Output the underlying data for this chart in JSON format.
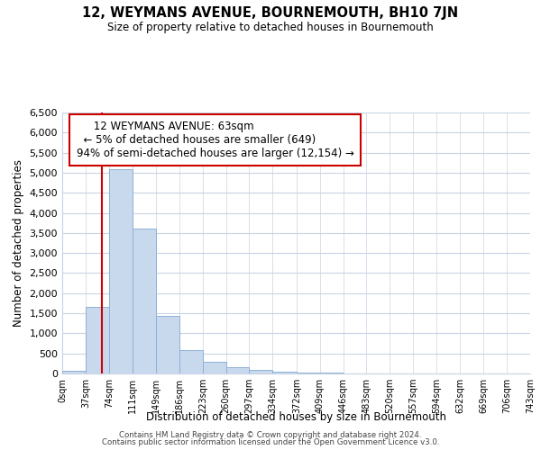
{
  "title": "12, WEYMANS AVENUE, BOURNEMOUTH, BH10 7JN",
  "subtitle": "Size of property relative to detached houses in Bournemouth",
  "xlabel": "Distribution of detached houses by size in Bournemouth",
  "ylabel": "Number of detached properties",
  "bar_edges": [
    0,
    37,
    74,
    111,
    149,
    186,
    223,
    260,
    297,
    334,
    372,
    409,
    446,
    483,
    520,
    557,
    594,
    632,
    669,
    706,
    743
  ],
  "bar_heights": [
    60,
    1650,
    5080,
    3600,
    1430,
    580,
    300,
    155,
    95,
    55,
    20,
    30,
    0,
    0,
    0,
    0,
    0,
    0,
    0,
    0
  ],
  "bar_color": "#c8d9ee",
  "bar_edge_color": "#8fb0d4",
  "marker_x": 63,
  "marker_color": "#cc0000",
  "ylim": [
    0,
    6500
  ],
  "yticks": [
    0,
    500,
    1000,
    1500,
    2000,
    2500,
    3000,
    3500,
    4000,
    4500,
    5000,
    5500,
    6000,
    6500
  ],
  "xlim": [
    0,
    743
  ],
  "tick_labels": [
    "0sqm",
    "37sqm",
    "74sqm",
    "111sqm",
    "149sqm",
    "186sqm",
    "223sqm",
    "260sqm",
    "297sqm",
    "334sqm",
    "372sqm",
    "409sqm",
    "446sqm",
    "483sqm",
    "520sqm",
    "557sqm",
    "594sqm",
    "632sqm",
    "669sqm",
    "706sqm",
    "743sqm"
  ],
  "annotation_title": "12 WEYMANS AVENUE: 63sqm",
  "annotation_line1": "← 5% of detached houses are smaller (649)",
  "annotation_line2": "94% of semi-detached houses are larger (12,154) →",
  "annotation_box_color": "#ffffff",
  "annotation_box_edge": "#cc0000",
  "footer_line1": "Contains HM Land Registry data © Crown copyright and database right 2024.",
  "footer_line2": "Contains public sector information licensed under the Open Government Licence v3.0.",
  "bg_color": "#ffffff",
  "grid_color": "#c8d4e3"
}
